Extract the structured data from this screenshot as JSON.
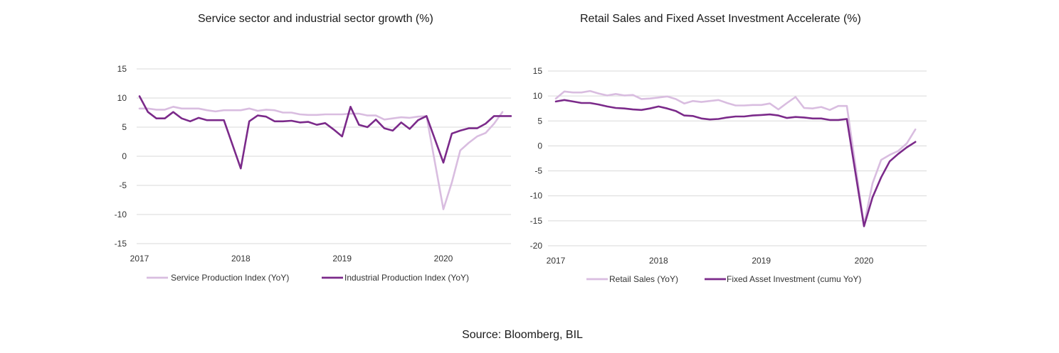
{
  "source": "Source: Bloomberg, BIL",
  "colors": {
    "light": "#d9bde0",
    "dark": "#7b2a8a",
    "grid": "#d9d9d9"
  },
  "chart_data": [
    {
      "type": "line",
      "title": "Service sector and industrial sector growth (%)",
      "ylim": [
        -15,
        15
      ],
      "yticks": [
        15,
        10,
        5,
        0,
        -5,
        -10,
        -15
      ],
      "xticks": [
        "2017",
        "2018",
        "2019",
        "2020"
      ],
      "grid": true,
      "legend": "bottom",
      "series": [
        {
          "name": "Service Production Index (YoY)",
          "color": "#d9bde0",
          "x": [
            "2017-01",
            "2017-02",
            "2017-03",
            "2017-04",
            "2017-05",
            "2017-06",
            "2017-07",
            "2017-08",
            "2017-09",
            "2017-10",
            "2017-11",
            "2017-12",
            "2018-01",
            "2018-02",
            "2018-03",
            "2018-04",
            "2018-05",
            "2018-06",
            "2018-07",
            "2018-08",
            "2018-09",
            "2018-10",
            "2018-11",
            "2018-12",
            "2019-01",
            "2019-02",
            "2019-03",
            "2019-04",
            "2019-05",
            "2019-06",
            "2019-07",
            "2019-08",
            "2019-09",
            "2019-10",
            "2019-11",
            "2019-12",
            "2020-01",
            "2020-02",
            "2020-03",
            "2020-04",
            "2020-05",
            "2020-06",
            "2020-07",
            "2020-08",
            "2020-09"
          ],
          "values": [
            8.2,
            8.2,
            8.0,
            8.0,
            8.5,
            8.2,
            8.2,
            8.2,
            7.9,
            7.7,
            7.9,
            7.9,
            7.9,
            8.2,
            7.8,
            8.0,
            7.9,
            7.5,
            7.5,
            7.2,
            7.1,
            7.1,
            7.2,
            7.2,
            7.2,
            7.3,
            7.3,
            7.0,
            7.0,
            6.3,
            6.5,
            6.7,
            6.6,
            6.8,
            6.9,
            null,
            -9.1,
            -4.5,
            1.0,
            2.3,
            3.4,
            4.0,
            5.6,
            7.6,
            null
          ]
        },
        {
          "name": "Industrial Production Index (YoY)",
          "color": "#7b2a8a",
          "x": [
            "2017-01",
            "2017-02",
            "2017-03",
            "2017-04",
            "2017-05",
            "2017-06",
            "2017-07",
            "2017-08",
            "2017-09",
            "2017-10",
            "2017-11",
            "2017-12",
            "2018-01",
            "2018-02",
            "2018-03",
            "2018-04",
            "2018-05",
            "2018-06",
            "2018-07",
            "2018-08",
            "2018-09",
            "2018-10",
            "2018-11",
            "2018-12",
            "2019-01",
            "2019-02",
            "2019-03",
            "2019-04",
            "2019-05",
            "2019-06",
            "2019-07",
            "2019-08",
            "2019-09",
            "2019-10",
            "2019-11",
            "2019-12",
            "2020-01",
            "2020-02",
            "2020-03",
            "2020-04",
            "2020-05",
            "2020-06",
            "2020-07",
            "2020-08",
            "2020-09"
          ],
          "values": [
            10.3,
            7.6,
            6.5,
            6.5,
            7.6,
            6.5,
            6.0,
            6.6,
            6.2,
            6.2,
            6.2,
            null,
            -2.1,
            6.0,
            7.0,
            6.8,
            6.0,
            6.0,
            6.1,
            5.8,
            5.9,
            5.4,
            5.7,
            4.6,
            3.4,
            8.5,
            5.4,
            5.0,
            6.3,
            4.8,
            4.4,
            5.8,
            4.7,
            6.2,
            6.9,
            null,
            -1.1,
            3.9,
            4.4,
            4.8,
            4.8,
            5.6,
            6.9,
            6.9,
            6.9
          ]
        }
      ]
    },
    {
      "type": "line",
      "title": "Retail Sales and Fixed Asset Investment Accelerate (%)",
      "ylim": [
        -20,
        15
      ],
      "yticks": [
        15,
        10,
        5,
        0,
        -5,
        -10,
        -15,
        -20
      ],
      "xticks": [
        "2017",
        "2018",
        "2019",
        "2020"
      ],
      "grid": true,
      "legend": "bottom",
      "series": [
        {
          "name": "Retail Sales (YoY)",
          "color": "#d9bde0",
          "x": [
            "2017-01",
            "2017-02",
            "2017-03",
            "2017-04",
            "2017-05",
            "2017-06",
            "2017-07",
            "2017-08",
            "2017-09",
            "2017-10",
            "2017-11",
            "2017-12",
            "2018-01",
            "2018-02",
            "2018-03",
            "2018-04",
            "2018-05",
            "2018-06",
            "2018-07",
            "2018-08",
            "2018-09",
            "2018-10",
            "2018-11",
            "2018-12",
            "2019-01",
            "2019-02",
            "2019-03",
            "2019-04",
            "2019-05",
            "2019-06",
            "2019-07",
            "2019-08",
            "2019-09",
            "2019-10",
            "2019-11",
            "2019-12",
            "2020-01",
            "2020-02",
            "2020-03",
            "2020-04",
            "2020-05",
            "2020-06",
            "2020-07",
            "2020-08"
          ],
          "values": [
            9.5,
            10.9,
            10.7,
            10.7,
            11.0,
            10.5,
            10.1,
            10.4,
            10.1,
            10.2,
            9.4,
            9.5,
            9.7,
            9.9,
            9.4,
            8.5,
            9.0,
            8.8,
            9.0,
            9.2,
            8.6,
            8.1,
            8.1,
            8.2,
            8.2,
            8.5,
            7.3,
            8.6,
            9.8,
            7.6,
            7.5,
            7.8,
            7.2,
            8.0,
            8.0,
            null,
            -15.8,
            -7.5,
            -2.8,
            -1.8,
            -1.0,
            0.5,
            3.3,
            null
          ]
        },
        {
          "name": "Fixed Asset Investment (cumu YoY)",
          "color": "#7b2a8a",
          "x": [
            "2017-01",
            "2017-02",
            "2017-03",
            "2017-04",
            "2017-05",
            "2017-06",
            "2017-07",
            "2017-08",
            "2017-09",
            "2017-10",
            "2017-11",
            "2017-12",
            "2018-01",
            "2018-02",
            "2018-03",
            "2018-04",
            "2018-05",
            "2018-06",
            "2018-07",
            "2018-08",
            "2018-09",
            "2018-10",
            "2018-11",
            "2018-12",
            "2019-01",
            "2019-02",
            "2019-03",
            "2019-04",
            "2019-05",
            "2019-06",
            "2019-07",
            "2019-08",
            "2019-09",
            "2019-10",
            "2019-11",
            "2019-12",
            "2020-01",
            "2020-02",
            "2020-03",
            "2020-04",
            "2020-05",
            "2020-06",
            "2020-07",
            "2020-08"
          ],
          "values": [
            8.9,
            9.2,
            8.9,
            8.6,
            8.6,
            8.3,
            7.9,
            7.6,
            7.5,
            7.3,
            7.2,
            7.5,
            7.9,
            7.5,
            7.0,
            6.1,
            6.0,
            5.5,
            5.3,
            5.4,
            5.7,
            5.9,
            5.9,
            6.1,
            6.2,
            6.3,
            6.1,
            5.6,
            5.8,
            5.7,
            5.5,
            5.5,
            5.2,
            5.2,
            5.4,
            null,
            -16.1,
            -10.3,
            -6.3,
            -3.1,
            -1.6,
            -0.3,
            0.8,
            null
          ]
        }
      ]
    }
  ]
}
